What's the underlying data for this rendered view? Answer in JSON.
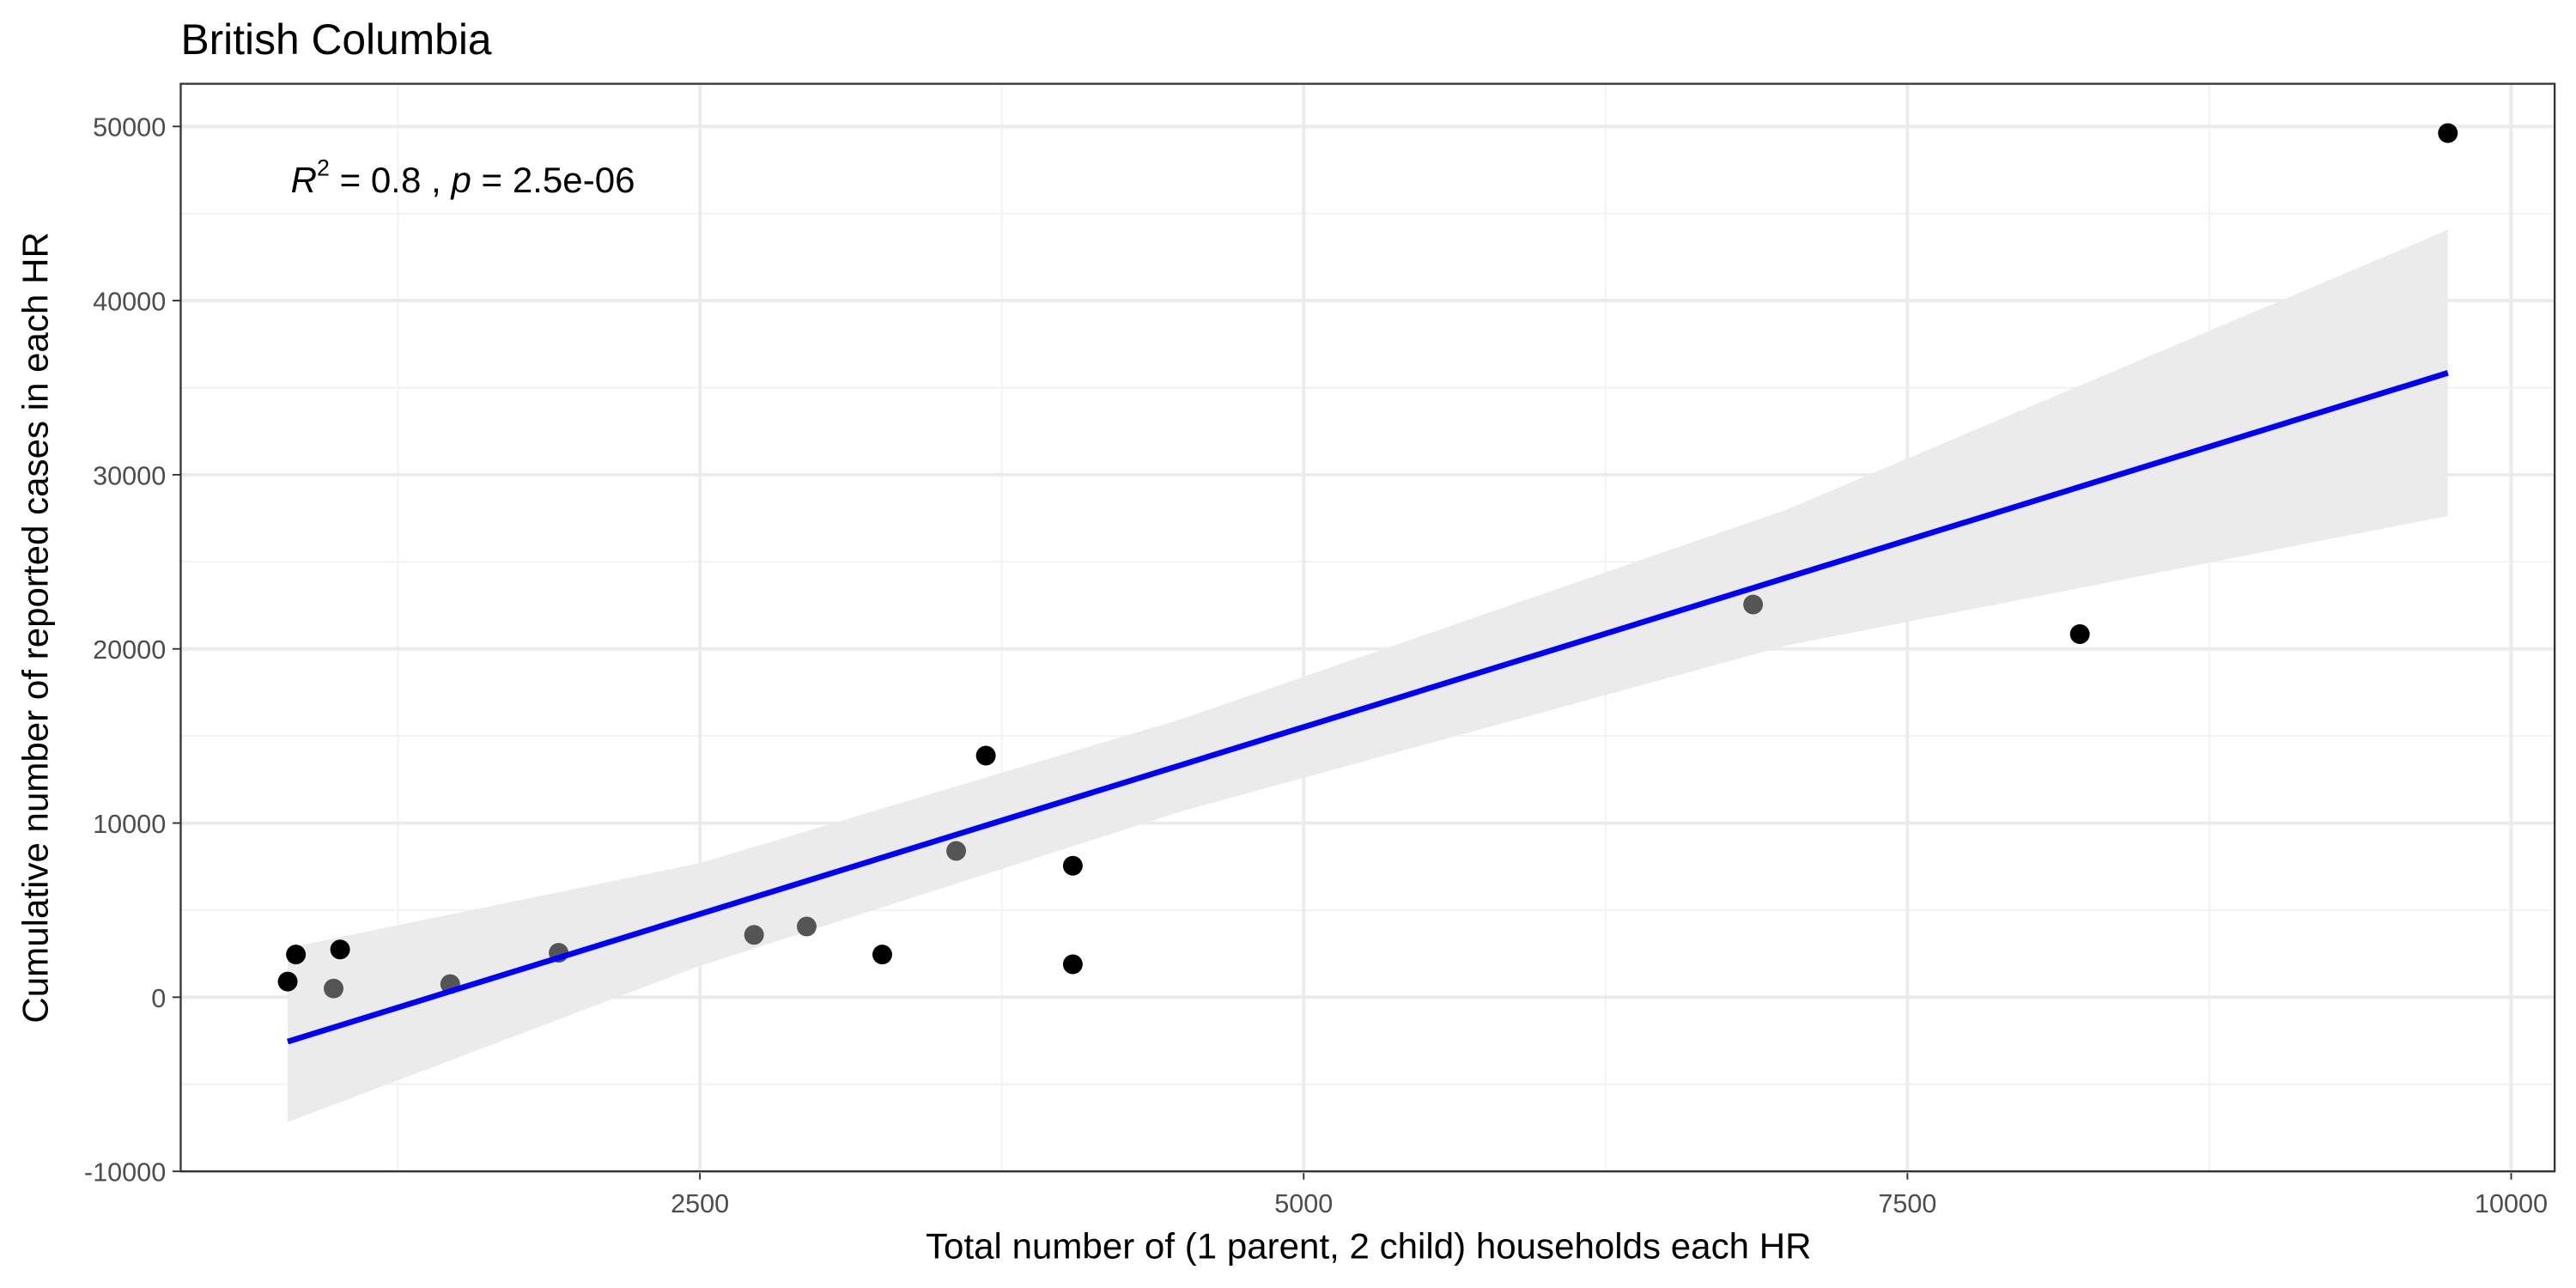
{
  "chart_data": {
    "type": "scatter",
    "title": "British Columbia",
    "x_label": "Total number of (1 parent, 2 child) households each HR",
    "y_label": "Cumulative number of reported cases in each HR",
    "annotation": [
      "R",
      "2",
      " = 0.8 , ",
      "p",
      " = 2.5e-06"
    ],
    "x": [
      793,
      827,
      1010,
      983,
      1466,
      1915,
      2724,
      2942,
      3255,
      3561,
      3684,
      4044,
      4044,
      6861,
      8214,
      9738
    ],
    "values": [
      900,
      2450,
      2740,
      500,
      750,
      2550,
      3580,
      4060,
      2450,
      8400,
      13870,
      7550,
      1890,
      22550,
      20850,
      49620
    ],
    "colors": [
      "#000000",
      "#000000",
      "#000000",
      "#555555",
      "#555555",
      "#555555",
      "#555555",
      "#555555",
      "#000000",
      "#555555",
      "#000000",
      "#000000",
      "#000000",
      "#555555",
      "#000000",
      "#000000"
    ],
    "fit": {
      "color": "#0000ff",
      "x": [
        793,
        2500,
        4500,
        7000,
        9738
      ],
      "values": [
        -2550,
        4778,
        13364,
        24097,
        35850
      ],
      "lower": [
        -7170,
        1800,
        10700,
        20200,
        27640
      ],
      "upper": [
        2830,
        7700,
        16000,
        28000,
        44060
      ],
      "band_color": "#ebebeb"
    },
    "xlim": [
      350,
      10180
    ],
    "ylim": [
      -10000,
      52450
    ],
    "xticks": [
      2500,
      5000,
      7500,
      10000
    ],
    "yticks": [
      -10000,
      0,
      10000,
      20000,
      30000,
      40000,
      50000
    ],
    "minor_xticks": [
      1250,
      3750,
      6250,
      8750
    ],
    "minor_yticks": [
      -5000,
      5000,
      15000,
      25000,
      35000,
      45000
    ],
    "grid": true
  }
}
